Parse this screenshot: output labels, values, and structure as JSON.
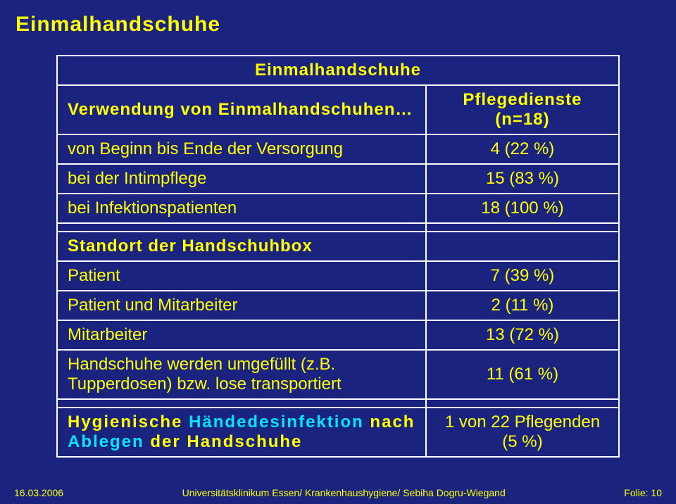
{
  "colors": {
    "background": "#1a237e",
    "border": "#ffffff",
    "title": "#ffff00",
    "text": "#ffff00",
    "highlight_text": "#00e5ff",
    "footer_text": "#ffff00"
  },
  "fonts": {
    "title_size": 30,
    "cell_size": 24,
    "footer_size": 14
  },
  "title": "Einmalhandschuhe",
  "table": {
    "header": {
      "main": "Einmalhandschuhe",
      "col2": "Pflegedienste (n=18)"
    },
    "section1": {
      "label": "Verwendung von Einmalhandschuhen…",
      "rows": [
        {
          "label": "von Beginn bis Ende der Versorgung",
          "value": "4 (22 %)"
        },
        {
          "label": "bei der Intimpflege",
          "value": "15 (83 %)"
        },
        {
          "label": "bei Infektionspatienten",
          "value": "18 (100 %)"
        }
      ]
    },
    "section2": {
      "label": "Standort der Handschuhbox",
      "rows": [
        {
          "label": "Patient",
          "value": "7 (39 %)"
        },
        {
          "label": "Patient und Mitarbeiter",
          "value": "2 (11 %)"
        },
        {
          "label": "Mitarbeiter",
          "value": "13 (72 %)"
        },
        {
          "label": "Handschuhe werden umgefüllt (z.B. Tupperdosen) bzw. lose transportiert",
          "value": "11 (61 %)"
        }
      ]
    },
    "section3": {
      "label_pre": "Hygienische ",
      "highlight": "Händedesinfektion",
      "label_mid": " nach ",
      "highlight2": "Ablegen",
      "label_post": " der Handschuhe",
      "value": "1 von 22 Pflegenden (5 %)"
    }
  },
  "footer": {
    "left": "16.03.2006",
    "center": "Universitätsklinikum Essen/ Krankenhaushygiene/ Sebiha Dogru-Wiegand",
    "right": "Folie: 10"
  }
}
